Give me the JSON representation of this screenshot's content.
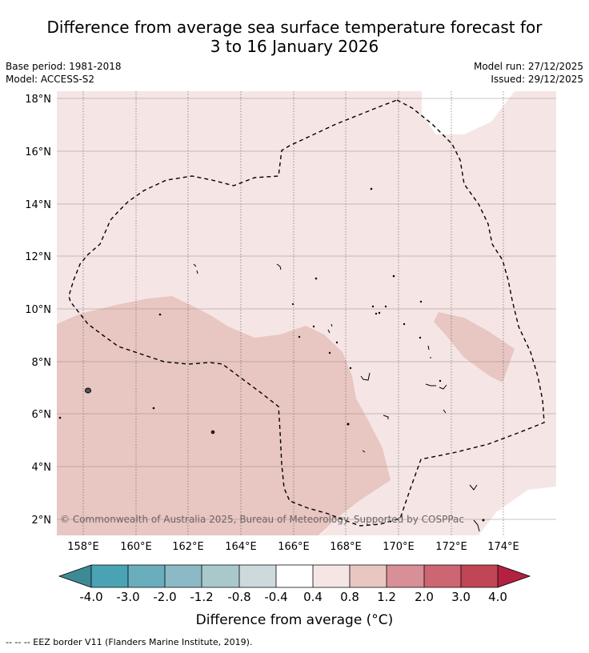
{
  "title": {
    "line1": "Difference from average sea surface temperature forecast for",
    "line2": "3 to 16 January 2026"
  },
  "meta": {
    "base_period": "Base period: 1981-2018",
    "model": "Model: ACCESS-S2",
    "model_run": "Model run: 27/12/2025",
    "issued": "Issued: 29/12/2025"
  },
  "map": {
    "lon_range": [
      157,
      176
    ],
    "lat_range": [
      1.5,
      18.2
    ],
    "lon_ticks": [
      "158°E",
      "160°E",
      "162°E",
      "164°E",
      "166°E",
      "168°E",
      "170°E",
      "172°E",
      "174°E"
    ],
    "lat_ticks": [
      "18°N",
      "16°N",
      "14°N",
      "12°N",
      "10°N",
      "8°N",
      "6°N",
      "4°N",
      "2°N"
    ],
    "copyright": "© Commonwealth of Australia 2025, Bureau of Meteorology. Supported by COSPPac",
    "fill_colors": {
      "band_0_4_to_0_8": "#f5e6e5",
      "band_0_8_to_1_2": "#e8c6c2",
      "neutral": "#ffffff"
    }
  },
  "colorbar": {
    "label": "Difference from average (°C)",
    "ticks": [
      "-4.0",
      "-3.0",
      "-2.0",
      "-1.2",
      "-0.8",
      "-0.4",
      "0.4",
      "0.8",
      "1.2",
      "2.0",
      "3.0",
      "4.0"
    ],
    "colors": [
      "#3d8a96",
      "#4aa3b5",
      "#6aaebd",
      "#8bb9c5",
      "#a9c8cc",
      "#cdd9dc",
      "#ffffff",
      "#f5e6e5",
      "#e8c6c2",
      "#d98f97",
      "#cc6672",
      "#c04555",
      "#b32040"
    ]
  },
  "footer": "--  --  -- EEZ border V11 (Flanders Marine Institute, 2019)."
}
